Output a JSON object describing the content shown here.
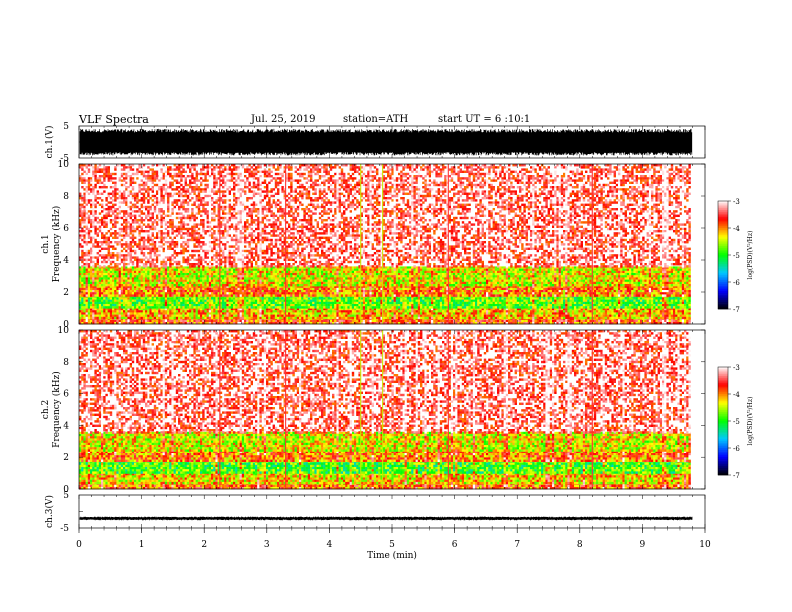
{
  "header": {
    "title": "VLF Spectra",
    "date": "Jul. 25, 2019",
    "station": "station=ATH",
    "start_time": "start UT =  6 :10:1"
  },
  "colors": {
    "trace": "#000000",
    "colormap": [
      "#000000",
      "#0000ff",
      "#00c8ff",
      "#00ff00",
      "#ffff00",
      "#ff0000",
      "#ffffff"
    ]
  },
  "chart_data": [
    {
      "type": "line",
      "panel": "ch1-waveform",
      "ylabel": "ch.1(V)",
      "ylim": [
        -5,
        5
      ],
      "ticks": [
        "5",
        "-5"
      ],
      "description_value": "dense broadband waveform spanning approximately -4 to 4 V"
    },
    {
      "type": "heatmap",
      "panel": "ch1-spectrogram",
      "ylabel": "ch.1 Frequency (kHz)",
      "ylim": [
        0,
        10
      ],
      "yticks": [
        "10",
        "8",
        "6",
        "4",
        "2",
        "0"
      ],
      "colorbar": {
        "label": "log(PSD)(V²/Hz)",
        "ticks": [
          "-3",
          "-4",
          "-5",
          "-6",
          "-7"
        ],
        "range": [
          -7,
          -3
        ]
      },
      "bands": [
        {
          "from_khz": 0,
          "to_khz": 0.4,
          "level": -3.8
        },
        {
          "from_khz": 0.4,
          "to_khz": 1.0,
          "level": -4.2
        },
        {
          "from_khz": 1.0,
          "to_khz": 1.8,
          "level": -4.8
        },
        {
          "from_khz": 1.8,
          "to_khz": 2.4,
          "level": -4.0
        },
        {
          "from_khz": 2.4,
          "to_khz": 3.6,
          "level": -4.4
        },
        {
          "from_khz": 3.6,
          "to_khz": 10,
          "level": -3.6
        }
      ]
    },
    {
      "type": "heatmap",
      "panel": "ch2-spectrogram",
      "ylabel": "ch.2 Frequency (kHz)",
      "ylim": [
        0,
        10
      ],
      "yticks": [
        "10",
        "8",
        "6",
        "4",
        "2",
        "0"
      ],
      "colorbar": {
        "label": "log(PSD)(V²/Hz)",
        "ticks": [
          "-3",
          "-4",
          "-5",
          "-6",
          "-7"
        ],
        "range": [
          -7,
          -3
        ]
      },
      "bands": [
        {
          "from_khz": 0,
          "to_khz": 0.4,
          "level": -3.9
        },
        {
          "from_khz": 0.4,
          "to_khz": 1.0,
          "level": -4.3
        },
        {
          "from_khz": 1.0,
          "to_khz": 1.8,
          "level": -4.9
        },
        {
          "from_khz": 1.8,
          "to_khz": 2.4,
          "level": -4.0
        },
        {
          "from_khz": 2.4,
          "to_khz": 3.6,
          "level": -4.4
        },
        {
          "from_khz": 3.6,
          "to_khz": 10,
          "level": -3.6
        }
      ]
    },
    {
      "type": "line",
      "panel": "ch3-waveform",
      "ylabel": "ch.3(V)",
      "ylim": [
        -5,
        5
      ],
      "ticks": [
        "5",
        "-5"
      ],
      "baseline_v": -2.1
    }
  ],
  "x_axis": {
    "label": "Time (min)",
    "range": [
      0,
      10
    ],
    "data_end_min": 9.8,
    "ticks": [
      "0",
      "1",
      "2",
      "3",
      "4",
      "5",
      "6",
      "7",
      "8",
      "9",
      "10"
    ]
  }
}
